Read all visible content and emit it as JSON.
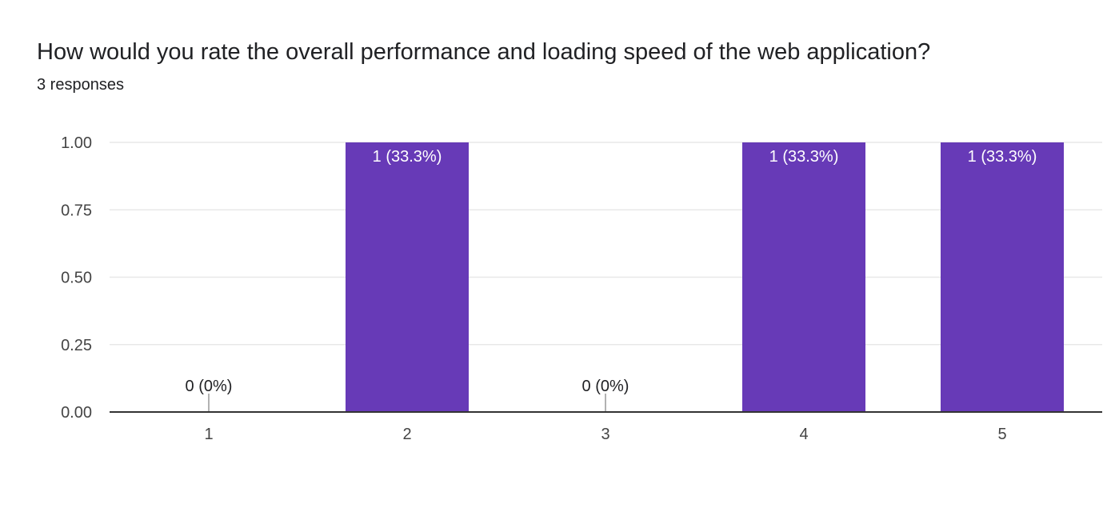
{
  "question": {
    "title": "How would you rate the overall performance and loading speed of the web application?",
    "responses": "3 responses"
  },
  "colors": {
    "bar": "#673ab7",
    "gridline": "#e8e8e8",
    "axis": "#333333"
  },
  "chart_data": {
    "type": "bar",
    "categories": [
      "1",
      "2",
      "3",
      "4",
      "5"
    ],
    "values": [
      0,
      1,
      0,
      1,
      1
    ],
    "data_labels": [
      "0 (0%)",
      "1 (33.3%)",
      "0 (0%)",
      "1 (33.3%)",
      "1 (33.3%)"
    ],
    "y_ticks": [
      "0.00",
      "0.25",
      "0.50",
      "0.75",
      "1.00"
    ],
    "ylim": [
      0,
      1
    ],
    "xlabel": "",
    "ylabel": "",
    "grid": true
  }
}
